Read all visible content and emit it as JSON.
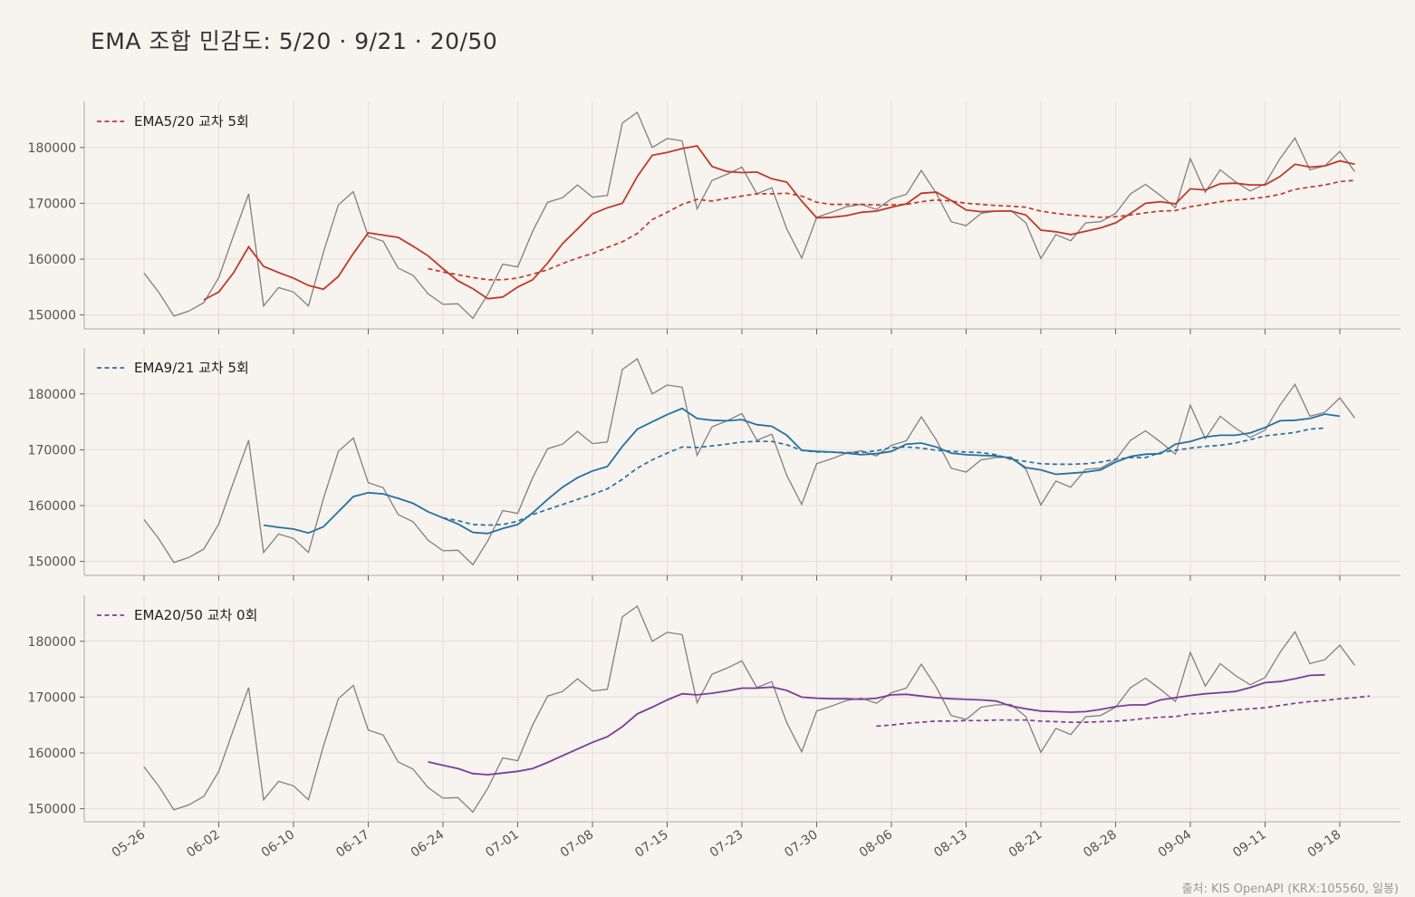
{
  "title": "EMA 조합 민감도: 5/20 · 9/21 · 20/50",
  "source": "출처: KIS OpenAPI (KRX:105560, 일봉)",
  "colors": {
    "price": "#808080",
    "panel1": "#c0392b",
    "panel2": "#2471a3",
    "panel3": "#7d3c98",
    "grid": "#e4ded8",
    "axis": "#aaaaaa"
  },
  "chart_data": {
    "type": "line",
    "x_tick_labels": [
      "05-26",
      "06-02",
      "06-10",
      "06-17",
      "06-24",
      "07-01",
      "07-08",
      "07-15",
      "07-23",
      "07-30",
      "08-06",
      "08-13",
      "08-21",
      "08-28",
      "09-04",
      "09-11",
      "09-18"
    ],
    "y_ticks": [
      150000,
      160000,
      170000,
      180000
    ],
    "ylim": [
      147500,
      188000
    ],
    "price": [
      157500,
      154000,
      149800,
      150700,
      152200,
      156700,
      164300,
      171700,
      151600,
      154900,
      154100,
      151600,
      161200,
      169700,
      172100,
      164100,
      163200,
      158400,
      157100,
      153800,
      151900,
      152000,
      149400,
      153700,
      159100,
      158600,
      165000,
      170200,
      171000,
      173300,
      171100,
      171400,
      184400,
      186300,
      180000,
      181600,
      181200,
      169000,
      174100,
      175200,
      176500,
      171700,
      172800,
      165400,
      160200,
      167500,
      168400,
      169400,
      169800,
      168900,
      170800,
      171600,
      175900,
      171800,
      166700,
      166000,
      168200,
      168600,
      168700,
      166500,
      160100,
      164400,
      163300,
      166500,
      166700,
      168200,
      171700,
      173400,
      171400,
      169200,
      178000,
      172000,
      176000,
      173900,
      172200,
      173500,
      178000,
      181700,
      176000,
      176700,
      179300,
      175700
    ],
    "panels": [
      {
        "legend": "EMA5/20 교차 5회",
        "fast_start": 4,
        "fast": [
          152700,
          154100,
          157600,
          162200,
          158700,
          157600,
          156600,
          155300,
          154600,
          156900,
          161000,
          164700,
          164300,
          163900,
          162300,
          160600,
          158300,
          156100,
          154700,
          152900,
          153200,
          155000,
          156300,
          159300,
          162800,
          165400,
          168100,
          169200,
          170000,
          174800,
          178600,
          179100,
          179800,
          180300,
          176600,
          175700,
          175500,
          175600,
          174400,
          173800,
          170400,
          167400,
          167500,
          167800,
          168400,
          168600,
          169300,
          169900,
          171800,
          172000,
          170500,
          168800,
          168500,
          168600,
          168600,
          167900,
          165200,
          164900,
          164400,
          165000,
          165600,
          166500,
          168200,
          170000,
          170300,
          169900,
          172600,
          172400,
          173500,
          173600,
          173300,
          173300,
          174800,
          177000,
          176500,
          176700,
          177600,
          177000
        ],
        "slow_start": 19,
        "slow": [
          158300,
          157700,
          157200,
          156700,
          156300,
          156300,
          156600,
          157300,
          158100,
          159200,
          160200,
          161000,
          162100,
          163100,
          164600,
          167100,
          168400,
          169800,
          170700,
          170400,
          170900,
          171300,
          171700,
          171700,
          171800,
          171300,
          170200,
          169800,
          169800,
          169800,
          169700,
          169700,
          169800,
          170300,
          170600,
          170400,
          170000,
          169800,
          169600,
          169500,
          169300,
          168600,
          168200,
          167900,
          167700,
          167500,
          167600,
          167900,
          168300,
          168600,
          168700,
          169400,
          169800,
          170300,
          170600,
          170800,
          171100,
          171600,
          172500,
          172900,
          173300,
          173900,
          174100
        ]
      },
      {
        "legend": "EMA9/21 교차 5회",
        "fast_start": 8,
        "fast": [
          156500,
          156100,
          155800,
          155100,
          156200,
          158900,
          161600,
          162300,
          162100,
          161300,
          160400,
          158900,
          157800,
          156700,
          155200,
          155000,
          155900,
          156600,
          158700,
          161100,
          163300,
          165000,
          166200,
          167000,
          170600,
          173700,
          175000,
          176300,
          177400,
          175600,
          175300,
          175200,
          175400,
          174500,
          174200,
          172600,
          169900,
          169700,
          169600,
          169400,
          169100,
          169300,
          169700,
          171000,
          171200,
          170500,
          169400,
          169100,
          169000,
          168900,
          168500,
          166800,
          166400,
          165600,
          165800,
          166000,
          166400,
          167800,
          168800,
          169200,
          169300,
          171000,
          171500,
          172300,
          172600,
          172600,
          173000,
          174000,
          175200,
          175300,
          175600,
          176400,
          176000
        ],
        "slow_start": 20,
        "slow": [
          157800,
          157300,
          156600,
          156500,
          156600,
          157200,
          158400,
          159300,
          160200,
          161100,
          162000,
          163000,
          164700,
          166700,
          168200,
          169400,
          170500,
          170400,
          170700,
          171000,
          171400,
          171500,
          171500,
          170900,
          169900,
          169600,
          169600,
          169500,
          169500,
          169800,
          170400,
          170500,
          170300,
          169900,
          169700,
          169600,
          169500,
          169100,
          168300,
          167900,
          167500,
          167400,
          167400,
          167500,
          167800,
          168300,
          168600,
          168600,
          169500,
          169900,
          170300,
          170600,
          170800,
          171200,
          171800,
          172500,
          172800,
          173100,
          173700,
          173900
        ]
      },
      {
        "legend": "EMA20/50 교차 0회",
        "fast_start": 19,
        "fast": [
          158400,
          157800,
          157200,
          156300,
          156100,
          156400,
          156700,
          157200,
          158300,
          159500,
          160700,
          161900,
          162900,
          164700,
          167000,
          168200,
          169500,
          170600,
          170400,
          170700,
          171100,
          171600,
          171600,
          171800,
          171200,
          170000,
          169800,
          169700,
          169700,
          169600,
          169800,
          170400,
          170500,
          170200,
          169900,
          169700,
          169600,
          169500,
          169300,
          168400,
          167900,
          167500,
          167400,
          167300,
          167400,
          167800,
          168300,
          168600,
          168600,
          169500,
          169900,
          170300,
          170600,
          170800,
          171000,
          171700,
          172600,
          172800,
          173300,
          173900,
          174000
        ],
        "slow_start": 49,
        "slow": [
          164800,
          165000,
          165300,
          165500,
          165700,
          165700,
          165800,
          165800,
          165900,
          165900,
          165900,
          165700,
          165600,
          165500,
          165500,
          165600,
          165700,
          165900,
          166200,
          166400,
          166500,
          167000,
          167100,
          167400,
          167700,
          167900,
          168100,
          168500,
          168900,
          169200,
          169400,
          169700,
          169900,
          170200
        ]
      }
    ]
  }
}
